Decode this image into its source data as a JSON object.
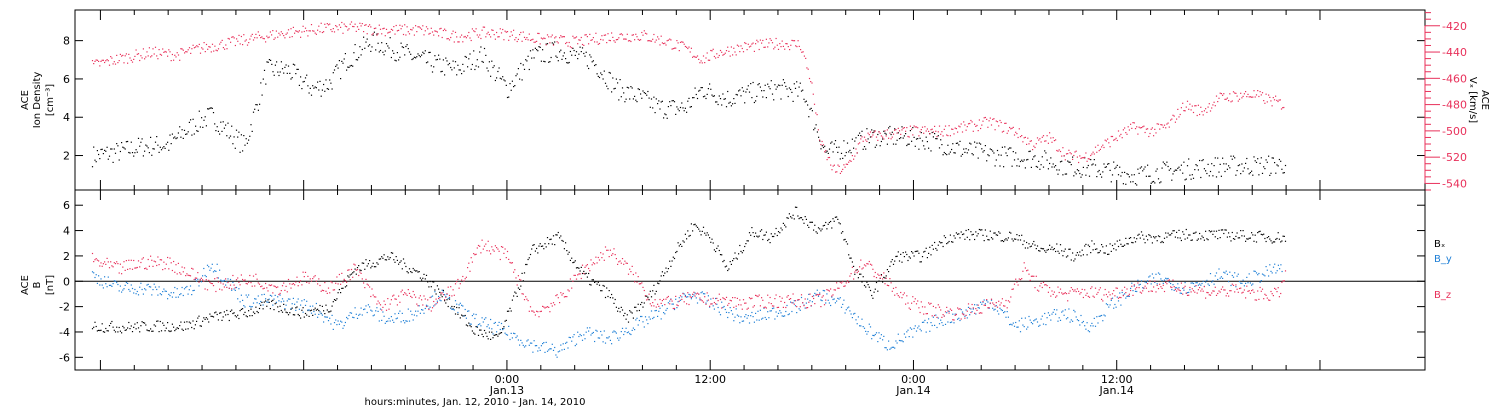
{
  "colors": {
    "black": "#000000",
    "red": "#e8305a",
    "blue": "#1e7fd6"
  },
  "chart_data": [
    {
      "type": "scatter",
      "panel": "density",
      "ylabel_lines": [
        "ACE",
        "Ion Density",
        "[cm⁻³]"
      ],
      "ylabel_right_lines": [
        "ACE",
        "Vₓ [km/s]"
      ],
      "ylim": [
        0.2,
        9.6
      ],
      "yticks": [
        2,
        4,
        6,
        8
      ],
      "ylim_right": [
        -545,
        -408
      ],
      "yticks_right": [
        -540,
        -520,
        -500,
        -480,
        -460,
        -440,
        -420
      ],
      "series": [
        {
          "name": "",
          "axis": "left",
          "color": "#000000",
          "points": [
            [
              -24.5,
              2.0
            ],
            [
              -23.0,
              2.2
            ],
            [
              -21.5,
              2.5
            ],
            [
              -20.0,
              2.6
            ],
            [
              -19.0,
              3.3
            ],
            [
              -18.2,
              3.8
            ],
            [
              -17.5,
              4.1
            ],
            [
              -15.5,
              2.5
            ],
            [
              -15.0,
              4.0
            ],
            [
              -14.2,
              6.5
            ],
            [
              -13.0,
              6.5
            ],
            [
              -11.5,
              5.5
            ],
            [
              -10.5,
              5.8
            ],
            [
              -9.5,
              7.0
            ],
            [
              -8.0,
              8.0
            ],
            [
              -6.5,
              7.5
            ],
            [
              -5.0,
              7.0
            ],
            [
              -3.0,
              6.5
            ],
            [
              -1.5,
              7.3
            ],
            [
              0.0,
              5.5
            ],
            [
              1.5,
              7.2
            ],
            [
              3.0,
              7.5
            ],
            [
              5.0,
              7.0
            ],
            [
              6.5,
              5.5
            ],
            [
              8.0,
              5.0
            ],
            [
              9.0,
              4.5
            ],
            [
              10.5,
              4.5
            ],
            [
              11.5,
              5.5
            ],
            [
              13.0,
              5.0
            ],
            [
              14.5,
              5.3
            ],
            [
              16.0,
              5.5
            ],
            [
              17.5,
              5.3
            ],
            [
              18.0,
              4.0
            ],
            [
              18.8,
              2.2
            ],
            [
              19.5,
              2.3
            ],
            [
              21.5,
              3.0
            ],
            [
              23.5,
              3.0
            ],
            [
              25.0,
              2.8
            ],
            [
              27.0,
              2.3
            ],
            [
              29.0,
              2.0
            ],
            [
              31.0,
              1.9
            ],
            [
              33.0,
              1.5
            ],
            [
              35.0,
              1.3
            ],
            [
              37.0,
              1.0
            ],
            [
              39.0,
              1.2
            ],
            [
              41.0,
              1.4
            ],
            [
              43.0,
              1.5
            ],
            [
              45.0,
              1.5
            ],
            [
              46.0,
              1.6
            ]
          ]
        },
        {
          "name": "",
          "axis": "right",
          "color": "#e8305a",
          "points": [
            [
              -24.5,
              -450
            ],
            [
              -23.0,
              -445
            ],
            [
              -21.0,
              -440
            ],
            [
              -19.5,
              -442
            ],
            [
              -18.2,
              -437
            ],
            [
              -14.5,
              -428
            ],
            [
              -13.0,
              -425
            ],
            [
              -11.0,
              -422
            ],
            [
              -9.0,
              -421
            ],
            [
              -7.0,
              -423
            ],
            [
              -5.0,
              -423
            ],
            [
              -3.0,
              -428
            ],
            [
              -1.5,
              -425
            ],
            [
              0.0,
              -426
            ],
            [
              2.0,
              -430
            ],
            [
              4.0,
              -432
            ],
            [
              6.0,
              -428
            ],
            [
              8.0,
              -427
            ],
            [
              9.5,
              -432
            ],
            [
              10.5,
              -437
            ],
            [
              11.5,
              -445
            ],
            [
              12.5,
              -440
            ],
            [
              14.0,
              -436
            ],
            [
              16.0,
              -433
            ],
            [
              17.3,
              -434
            ],
            [
              17.9,
              -460
            ],
            [
              18.5,
              -510
            ],
            [
              19.3,
              -530
            ],
            [
              20.0,
              -528
            ],
            [
              21.0,
              -505
            ],
            [
              22.5,
              -502
            ],
            [
              24.0,
              -500
            ],
            [
              25.5,
              -500
            ],
            [
              27.0,
              -497
            ],
            [
              28.5,
              -493
            ],
            [
              30.0,
              -500
            ],
            [
              31.0,
              -510
            ],
            [
              32.0,
              -505
            ],
            [
              33.0,
              -518
            ],
            [
              34.0,
              -520
            ],
            [
              35.0,
              -512
            ],
            [
              36.0,
              -504
            ],
            [
              37.0,
              -497
            ],
            [
              38.0,
              -500
            ],
            [
              39.0,
              -496
            ],
            [
              40.0,
              -480
            ],
            [
              41.0,
              -485
            ],
            [
              42.0,
              -475
            ],
            [
              43.0,
              -473
            ],
            [
              44.0,
              -472
            ],
            [
              45.0,
              -476
            ],
            [
              45.9,
              -480
            ]
          ]
        }
      ]
    },
    {
      "type": "scatter",
      "panel": "magnetic field",
      "ylabel_lines": [
        "ACE",
        "B",
        "[nT]"
      ],
      "ylim": [
        -7.0,
        7.2
      ],
      "yticks": [
        -6,
        -4,
        -2,
        0,
        2,
        4,
        6
      ],
      "zero_line": true,
      "series": [
        {
          "name": "Bₓ",
          "color": "#000000",
          "points": [
            [
              -24.5,
              -3.5
            ],
            [
              -22.5,
              -3.6
            ],
            [
              -20.5,
              -3.5
            ],
            [
              -19.0,
              -3.5
            ],
            [
              -17.5,
              -2.8
            ],
            [
              -15.5,
              -2.5
            ],
            [
              -14.0,
              -1.8
            ],
            [
              -12.0,
              -2.5
            ],
            [
              -10.5,
              -2.0
            ],
            [
              -9.0,
              1.0
            ],
            [
              -7.0,
              2.0
            ],
            [
              -5.0,
              0.5
            ],
            [
              -3.5,
              -1.5
            ],
            [
              -2.0,
              -3.8
            ],
            [
              -0.5,
              -4.5
            ],
            [
              1.5,
              2.5
            ],
            [
              3.0,
              3.5
            ],
            [
              4.5,
              0.5
            ],
            [
              6.0,
              -1.0
            ],
            [
              7.0,
              -3.0
            ],
            [
              8.5,
              -1.0
            ],
            [
              10.0,
              2.5
            ],
            [
              11.0,
              4.5
            ],
            [
              12.0,
              3.5
            ],
            [
              13.0,
              1.0
            ],
            [
              14.5,
              4.0
            ],
            [
              15.5,
              3.5
            ],
            [
              17.0,
              5.5
            ],
            [
              18.5,
              4.0
            ],
            [
              19.5,
              5.0
            ],
            [
              20.5,
              1.0
            ],
            [
              21.5,
              -1.0
            ],
            [
              23.0,
              2.0
            ],
            [
              24.5,
              2.0
            ],
            [
              26.0,
              3.5
            ],
            [
              27.0,
              3.7
            ],
            [
              28.5,
              3.7
            ],
            [
              30.0,
              3.5
            ],
            [
              31.5,
              2.5
            ],
            [
              32.5,
              2.6
            ],
            [
              33.5,
              2.0
            ],
            [
              34.5,
              2.8
            ],
            [
              35.5,
              2.5
            ],
            [
              37.0,
              3.5
            ],
            [
              38.5,
              3.5
            ],
            [
              40.0,
              3.7
            ],
            [
              42.0,
              3.7
            ],
            [
              44.0,
              3.6
            ],
            [
              45.0,
              3.5
            ],
            [
              46.0,
              3.5
            ]
          ]
        },
        {
          "name": "B_y",
          "color": "#1e7fd6",
          "points": [
            [
              -24.5,
              0.5
            ],
            [
              -23.0,
              -0.5
            ],
            [
              -21.5,
              -0.5
            ],
            [
              -19.5,
              -1.0
            ],
            [
              -18.5,
              -0.5
            ],
            [
              -17.5,
              1.5
            ],
            [
              -15.5,
              -1.5
            ],
            [
              -13.5,
              -1.5
            ],
            [
              -11.5,
              -2.0
            ],
            [
              -10.0,
              -3.5
            ],
            [
              -8.5,
              -2.0
            ],
            [
              -7.0,
              -3.0
            ],
            [
              -5.5,
              -2.5
            ],
            [
              -4.0,
              -1.0
            ],
            [
              -2.0,
              -3.0
            ],
            [
              0.0,
              -4.0
            ],
            [
              1.5,
              -5.0
            ],
            [
              3.0,
              -5.5
            ],
            [
              4.5,
              -4.0
            ],
            [
              6.0,
              -4.5
            ],
            [
              7.5,
              -3.5
            ],
            [
              9.0,
              -2.5
            ],
            [
              10.0,
              -1.5
            ],
            [
              11.0,
              -1.0
            ],
            [
              12.5,
              -2.0
            ],
            [
              14.0,
              -3.0
            ],
            [
              15.5,
              -2.5
            ],
            [
              17.0,
              -2.0
            ],
            [
              18.5,
              -1.0
            ],
            [
              20.0,
              -2.0
            ],
            [
              21.0,
              -3.5
            ],
            [
              22.5,
              -5.0
            ],
            [
              24.0,
              -4.0
            ],
            [
              25.5,
              -3.0
            ],
            [
              27.0,
              -2.5
            ],
            [
              28.5,
              -1.5
            ],
            [
              30.0,
              -3.5
            ],
            [
              31.5,
              -3.0
            ],
            [
              33.0,
              -2.5
            ],
            [
              34.5,
              -3.5
            ],
            [
              35.5,
              -2.0
            ],
            [
              37.0,
              -0.5
            ],
            [
              38.5,
              0.3
            ],
            [
              40.0,
              -0.5
            ],
            [
              42.0,
              0.5
            ],
            [
              43.5,
              0.0
            ],
            [
              45.0,
              0.8
            ],
            [
              45.8,
              1.2
            ]
          ]
        },
        {
          "name": "B_z",
          "color": "#e8305a",
          "points": [
            [
              -24.5,
              1.7
            ],
            [
              -23.0,
              1.0
            ],
            [
              -21.5,
              1.5
            ],
            [
              -20.0,
              1.5
            ],
            [
              -18.5,
              0.5
            ],
            [
              -17.5,
              -0.3
            ],
            [
              -15.0,
              0.2
            ],
            [
              -13.5,
              -0.5
            ],
            [
              -12.0,
              0.3
            ],
            [
              -10.5,
              -0.5
            ],
            [
              -9.0,
              1.0
            ],
            [
              -7.5,
              -2.0
            ],
            [
              -6.0,
              -1.0
            ],
            [
              -4.5,
              -1.8
            ],
            [
              -3.0,
              -0.5
            ],
            [
              -1.5,
              3.0
            ],
            [
              0.0,
              2.0
            ],
            [
              1.5,
              -2.5
            ],
            [
              3.0,
              -1.5
            ],
            [
              4.5,
              1.0
            ],
            [
              6.0,
              2.5
            ],
            [
              7.5,
              0.5
            ],
            [
              8.5,
              -1.5
            ],
            [
              9.5,
              -1.7
            ],
            [
              11.0,
              -1.3
            ],
            [
              12.5,
              -1.5
            ],
            [
              14.0,
              -1.7
            ],
            [
              15.5,
              -1.5
            ],
            [
              17.0,
              -1.5
            ],
            [
              18.5,
              -1.5
            ],
            [
              19.5,
              -0.5
            ],
            [
              21.0,
              1.5
            ],
            [
              22.0,
              0.5
            ],
            [
              23.5,
              -1.5
            ],
            [
              25.0,
              -2.2
            ],
            [
              26.5,
              -2.5
            ],
            [
              28.0,
              -2.0
            ],
            [
              29.5,
              -1.5
            ],
            [
              30.5,
              1.0
            ],
            [
              31.5,
              -0.5
            ],
            [
              33.0,
              -1.0
            ],
            [
              34.0,
              -0.8
            ],
            [
              35.5,
              -1.0
            ],
            [
              37.0,
              -0.5
            ],
            [
              38.5,
              -0.3
            ],
            [
              40.0,
              -0.5
            ],
            [
              41.5,
              -0.8
            ],
            [
              43.0,
              -0.7
            ],
            [
              44.5,
              -1.0
            ],
            [
              45.5,
              -1.0
            ],
            [
              46.0,
              0.8
            ]
          ]
        }
      ]
    }
  ],
  "x_axis": {
    "ticks": [
      {
        "time": "0:00",
        "date": "Jan.13",
        "hours": 0
      },
      {
        "time": "12:00",
        "date": "",
        "hours": 12
      },
      {
        "time": "0:00",
        "date": "Jan.14",
        "hours": 24
      },
      {
        "time": "12:00",
        "date": "Jan.14",
        "hours": 36
      }
    ],
    "xlim": [
      -25.5,
      54.2
    ],
    "label": "hours:minutes, Jan. 12, 2010 - Jan. 14, 2010"
  }
}
